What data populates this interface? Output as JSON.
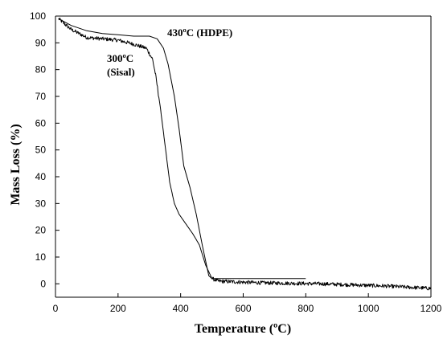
{
  "chart_data": {
    "type": "line",
    "xlabel": "Temperature (ºC)",
    "ylabel": "Mass Loss (%)",
    "xlim": [
      0,
      1200
    ],
    "ylim": [
      -5,
      100
    ],
    "x_ticks": [
      0,
      200,
      400,
      600,
      800,
      1000,
      1200
    ],
    "y_ticks": [
      0,
      10,
      20,
      30,
      40,
      50,
      60,
      70,
      80,
      90,
      100
    ],
    "grid": false,
    "annotations": [
      {
        "text": "430ºC (HDPE)",
        "x": 410,
        "y": 94
      },
      {
        "text": "300ºC",
        "x": 170,
        "y": 84
      },
      {
        "text": "(Sisal)",
        "x": 170,
        "y": 78
      }
    ],
    "series": [
      {
        "x": [
          10,
          50,
          100,
          150,
          200,
          250,
          290,
          310,
          320,
          335,
          350,
          365,
          380,
          395,
          410,
          425,
          440,
          460,
          480,
          500,
          520,
          560,
          600,
          650,
          700,
          750,
          800,
          850,
          900,
          950,
          1000,
          1050,
          1100,
          1150,
          1200
        ],
        "y": [
          99,
          95,
          92,
          91.5,
          91,
          89.5,
          88,
          84,
          78,
          66,
          52,
          38,
          30,
          26,
          23.5,
          21,
          18.5,
          14.5,
          7,
          2,
          1,
          0.8,
          0.6,
          0.4,
          0.3,
          0.2,
          0.1,
          0,
          -0.2,
          -0.4,
          -0.6,
          -0.8,
          -1.1,
          -1.4,
          -1.7
        ],
        "noise": 0.7
      },
      {
        "x": [
          10,
          50,
          100,
          150,
          200,
          250,
          300,
          325,
          345,
          360,
          380,
          395,
          410,
          430,
          450,
          470,
          490,
          500,
          600,
          700,
          800
        ],
        "y": [
          99,
          96.5,
          94.5,
          93.5,
          93,
          92.5,
          92.5,
          91.5,
          88,
          82,
          70,
          58,
          44,
          36,
          26,
          14,
          3,
          2,
          2,
          2,
          2
        ],
        "noise": 0
      }
    ]
  }
}
